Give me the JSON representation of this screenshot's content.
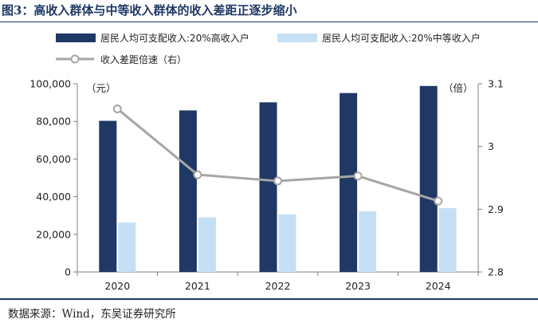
{
  "title": "图3：高收入群体与中等收入群体的收入差距正逐步缩小",
  "source": "数据来源：Wind，东吴证券研究所",
  "colors": {
    "high_bar": "#1f3864",
    "mid_bar": "#c5e0f5",
    "line": "#a6a6a6",
    "rule": "#1f3864"
  },
  "chart_data": {
    "type": "bar+line",
    "categories": [
      "2020",
      "2021",
      "2022",
      "2023",
      "2024"
    ],
    "series": [
      {
        "name": "居民人均可支配收入:20%高收入户",
        "type": "bar",
        "axis": "left",
        "values": [
          80294,
          85836,
          90116,
          95055,
          98809
        ]
      },
      {
        "name": "居民人均可支配收入:20%中等收入户",
        "type": "bar",
        "axis": "left",
        "values": [
          26249,
          29053,
          30598,
          32195,
          33925
        ]
      },
      {
        "name": "收入差距倍速（右）",
        "type": "line",
        "axis": "right",
        "values": [
          3.06,
          2.955,
          2.945,
          2.953,
          2.913
        ]
      }
    ],
    "left_axis": {
      "unit_label": "（元）",
      "min": 0,
      "max": 100000,
      "ticks": [
        "0",
        "20,000",
        "40,000",
        "60,000",
        "80,000",
        "100,000"
      ]
    },
    "right_axis": {
      "unit_label": "（倍）",
      "min": 2.8,
      "max": 3.1,
      "ticks": [
        "2.8",
        "2.9",
        "3",
        "3.1"
      ]
    },
    "grid": false,
    "legend_position": "top"
  }
}
